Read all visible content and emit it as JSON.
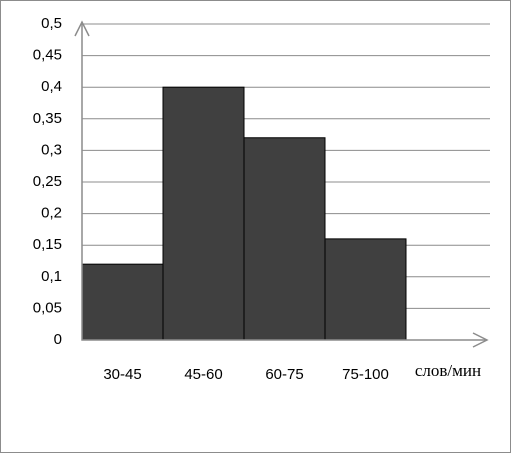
{
  "chart_data": {
    "type": "bar",
    "categories": [
      "30-45",
      "45-60",
      "60-75",
      "75-100"
    ],
    "values": [
      0.12,
      0.4,
      0.32,
      0.16
    ],
    "color": "#404040",
    "x_label": "слов/мин",
    "ylim": [
      0,
      0.5
    ],
    "yticks": [
      0,
      {
        "value": 0.05,
        "label": "0,05"
      },
      {
        "value": 0.1,
        "label": "0,1"
      },
      {
        "value": 0.15,
        "label": "0,15"
      },
      {
        "value": 0.2,
        "label": "0,2"
      },
      {
        "value": 0.25,
        "label": "0,25"
      },
      {
        "value": 0.3,
        "label": "0,3"
      },
      {
        "value": 0.35,
        "label": "0,35"
      },
      {
        "value": 0.4,
        "label": "0,4"
      },
      {
        "value": 0.45,
        "label": "0,45"
      },
      {
        "value": 0.5,
        "label": "0,5"
      }
    ],
    "grid": true
  }
}
